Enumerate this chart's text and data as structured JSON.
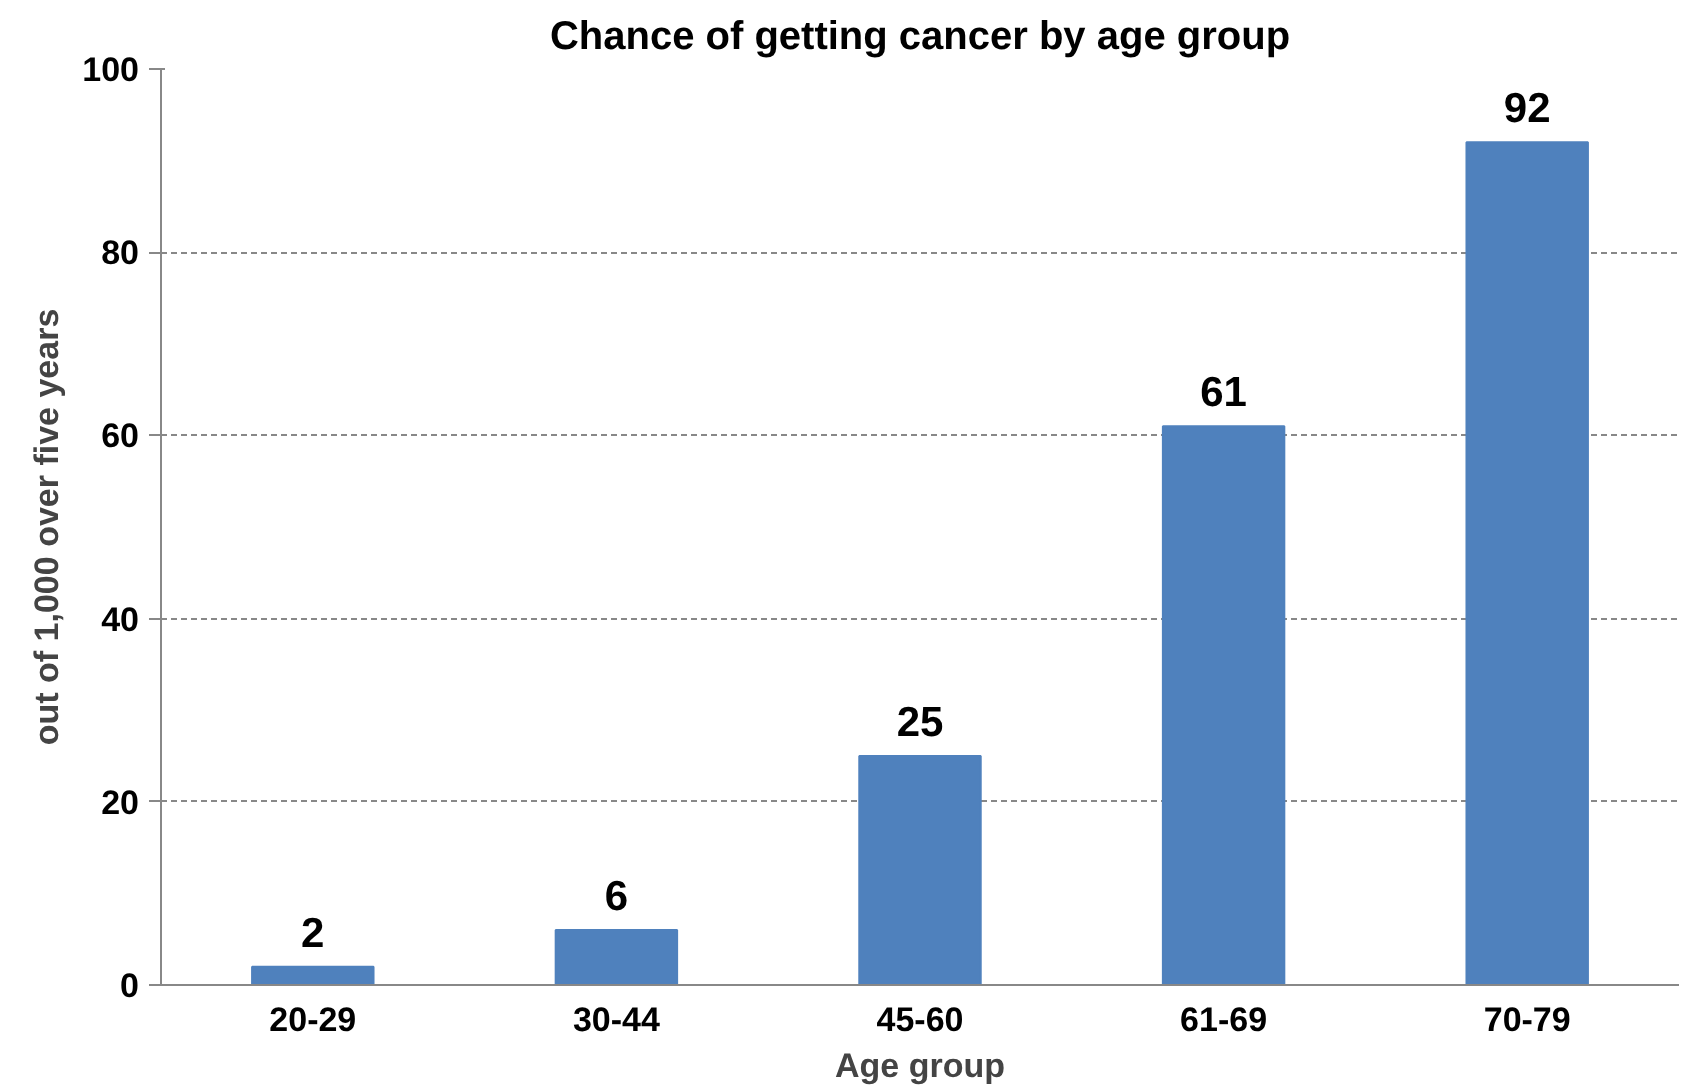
{
  "chart_data": {
    "type": "bar",
    "title": "Chance of getting cancer by age group",
    "xlabel": "Age group",
    "ylabel": "out of 1,000 over five years",
    "categories": [
      "20-29",
      "30-44",
      "45-60",
      "61-69",
      "70-79"
    ],
    "values": [
      2,
      6,
      25,
      61,
      92
    ],
    "color": "#4f81bd",
    "ylim": [
      0,
      100
    ],
    "yticks": [
      0,
      20,
      40,
      60,
      80,
      100
    ],
    "grid": "y",
    "data_labels": true
  }
}
